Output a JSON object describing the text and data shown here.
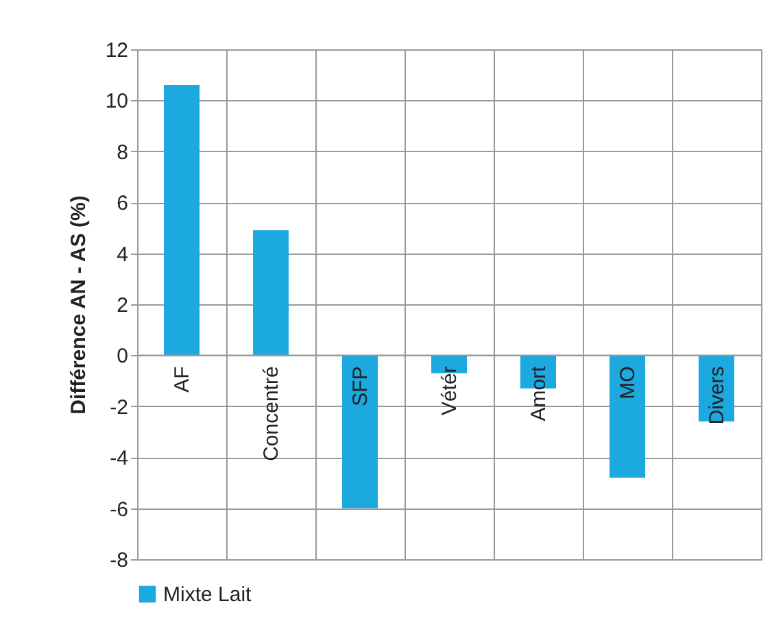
{
  "chart_data": {
    "type": "bar",
    "ylabel": "Différence AN - AS (%)",
    "categories": [
      "AF",
      "Concentré",
      "SFP",
      "Vétér",
      "Amort",
      "MO",
      "Divers"
    ],
    "series": [
      {
        "name": "Mixte Lait",
        "color": "#1ba9e0",
        "values": [
          10.6,
          4.9,
          -6.0,
          -0.7,
          -1.3,
          -4.8,
          -2.6
        ]
      }
    ],
    "ylim": [
      -8,
      12
    ],
    "yticks": [
      -8,
      -6,
      -4,
      -2,
      0,
      2,
      4,
      6,
      8,
      10,
      12
    ],
    "grid": true,
    "legend": "bottom"
  }
}
